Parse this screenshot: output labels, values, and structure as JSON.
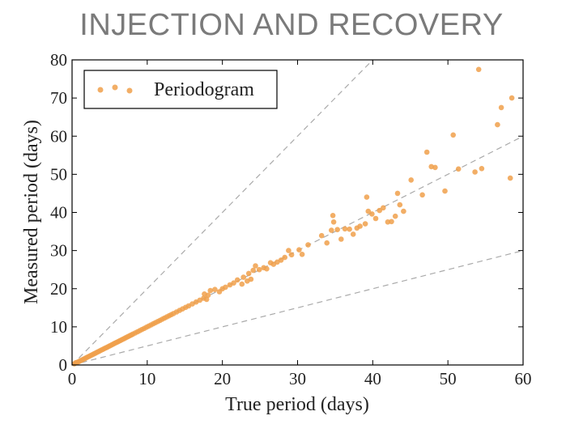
{
  "slide": {
    "title": "INJECTION AND RECOVERY"
  },
  "chart_data": {
    "type": "scatter",
    "title": "",
    "xlabel": "True period (days)",
    "ylabel": "Measured period (days)",
    "xlim": [
      0,
      60
    ],
    "ylim": [
      0,
      80
    ],
    "xticks": [
      "0",
      "10",
      "20",
      "30",
      "40",
      "50",
      "60"
    ],
    "yticks": [
      "0",
      "10",
      "20",
      "30",
      "40",
      "50",
      "60",
      "70",
      "80"
    ],
    "grid": false,
    "legend": {
      "position": "top-left",
      "entries": [
        "Periodogram"
      ]
    },
    "colors": {
      "points": "#f0a04b",
      "reference_lines": "#aaaaaa",
      "axes": "#000000"
    },
    "reference_lines": [
      {
        "slope": 2,
        "style": "dashed"
      },
      {
        "slope": 1,
        "style": "dashed"
      },
      {
        "slope": 0.5,
        "style": "dashed"
      }
    ],
    "series": [
      {
        "name": "Periodogram",
        "points": [
          [
            0.3,
            0.3
          ],
          [
            0.5,
            0.6
          ],
          [
            0.7,
            0.7
          ],
          [
            0.9,
            0.9
          ],
          [
            1.1,
            1.1
          ],
          [
            1.3,
            1.3
          ],
          [
            1.5,
            1.5
          ],
          [
            1.7,
            1.7
          ],
          [
            1.9,
            1.9
          ],
          [
            2.1,
            2.1
          ],
          [
            2.3,
            2.3
          ],
          [
            2.5,
            2.5
          ],
          [
            2.7,
            2.7
          ],
          [
            2.9,
            2.9
          ],
          [
            3.1,
            3.1
          ],
          [
            3.3,
            3.3
          ],
          [
            3.5,
            3.5
          ],
          [
            3.7,
            3.7
          ],
          [
            3.9,
            3.9
          ],
          [
            4.1,
            4.1
          ],
          [
            4.3,
            4.3
          ],
          [
            4.5,
            4.5
          ],
          [
            4.7,
            4.7
          ],
          [
            4.9,
            4.9
          ],
          [
            5.1,
            5.1
          ],
          [
            5.3,
            5.3
          ],
          [
            5.5,
            5.5
          ],
          [
            5.7,
            5.7
          ],
          [
            5.9,
            5.9
          ],
          [
            6.1,
            6.1
          ],
          [
            6.3,
            6.3
          ],
          [
            6.5,
            6.5
          ],
          [
            6.7,
            6.7
          ],
          [
            6.9,
            6.9
          ],
          [
            7.1,
            7.1
          ],
          [
            7.3,
            7.3
          ],
          [
            7.5,
            7.5
          ],
          [
            7.7,
            7.7
          ],
          [
            7.9,
            7.9
          ],
          [
            8.1,
            8.1
          ],
          [
            8.4,
            8.4
          ],
          [
            8.7,
            8.7
          ],
          [
            9.0,
            9.0
          ],
          [
            9.3,
            9.3
          ],
          [
            9.6,
            9.6
          ],
          [
            9.9,
            9.9
          ],
          [
            10.2,
            10.2
          ],
          [
            10.5,
            10.5
          ],
          [
            10.8,
            10.8
          ],
          [
            11.1,
            11.1
          ],
          [
            11.4,
            11.4
          ],
          [
            11.7,
            11.7
          ],
          [
            12.0,
            12.0
          ],
          [
            12.3,
            12.3
          ],
          [
            12.6,
            12.6
          ],
          [
            12.9,
            12.9
          ],
          [
            13.2,
            13.2
          ],
          [
            13.5,
            13.5
          ],
          [
            13.9,
            13.9
          ],
          [
            14.3,
            14.3
          ],
          [
            14.7,
            14.7
          ],
          [
            15.1,
            15.1
          ],
          [
            15.5,
            15.5
          ],
          [
            16.0,
            16.0
          ],
          [
            16.5,
            16.5
          ],
          [
            17.0,
            17.0
          ],
          [
            17.5,
            17.5
          ],
          [
            17.9,
            17.2
          ],
          [
            17.6,
            18.6
          ],
          [
            18.1,
            18.3
          ],
          [
            18.4,
            19.5
          ],
          [
            19.0,
            19.8
          ],
          [
            19.6,
            19.2
          ],
          [
            20.0,
            20.0
          ],
          [
            20.4,
            20.4
          ],
          [
            21.0,
            21.0
          ],
          [
            21.5,
            21.5
          ],
          [
            22.0,
            22.3
          ],
          [
            22.6,
            21.2
          ],
          [
            22.8,
            23.0
          ],
          [
            23.3,
            22.0
          ],
          [
            23.5,
            24.0
          ],
          [
            23.8,
            22.5
          ],
          [
            24.1,
            24.8
          ],
          [
            24.4,
            26.0
          ],
          [
            24.9,
            25.0
          ],
          [
            25.5,
            25.5
          ],
          [
            25.9,
            25.2
          ],
          [
            26.4,
            26.8
          ],
          [
            26.8,
            26.4
          ],
          [
            27.3,
            27.0
          ],
          [
            27.8,
            27.5
          ],
          [
            28.3,
            28.2
          ],
          [
            28.8,
            30.0
          ],
          [
            29.2,
            28.9
          ],
          [
            30.2,
            30.2
          ],
          [
            30.6,
            29.0
          ],
          [
            31.4,
            31.5
          ],
          [
            33.2,
            33.9
          ],
          [
            33.9,
            32.0
          ],
          [
            34.5,
            35.3
          ],
          [
            34.7,
            39.2
          ],
          [
            34.8,
            37.5
          ],
          [
            35.3,
            35.5
          ],
          [
            35.8,
            33.0
          ],
          [
            36.3,
            35.7
          ],
          [
            36.9,
            35.6
          ],
          [
            37.4,
            34.3
          ],
          [
            37.9,
            35.9
          ],
          [
            38.3,
            36.4
          ],
          [
            39.0,
            37.0
          ],
          [
            39.2,
            44.0
          ],
          [
            39.4,
            40.3
          ],
          [
            39.9,
            39.6
          ],
          [
            40.4,
            38.4
          ],
          [
            40.9,
            40.5
          ],
          [
            41.4,
            41.2
          ],
          [
            42.0,
            37.5
          ],
          [
            42.5,
            37.6
          ],
          [
            43.0,
            39.0
          ],
          [
            43.3,
            45.0
          ],
          [
            43.6,
            42.0
          ],
          [
            44.1,
            40.3
          ],
          [
            45.1,
            48.5
          ],
          [
            46.6,
            44.6
          ],
          [
            47.2,
            55.8
          ],
          [
            47.8,
            52.0
          ],
          [
            48.3,
            51.8
          ],
          [
            49.6,
            45.6
          ],
          [
            50.7,
            60.3
          ],
          [
            51.4,
            51.4
          ],
          [
            53.6,
            50.6
          ],
          [
            54.1,
            77.5
          ],
          [
            54.5,
            51.5
          ],
          [
            56.6,
            63.0
          ],
          [
            57.1,
            67.5
          ],
          [
            58.3,
            49.0
          ],
          [
            58.5,
            70.0
          ]
        ]
      }
    ]
  }
}
